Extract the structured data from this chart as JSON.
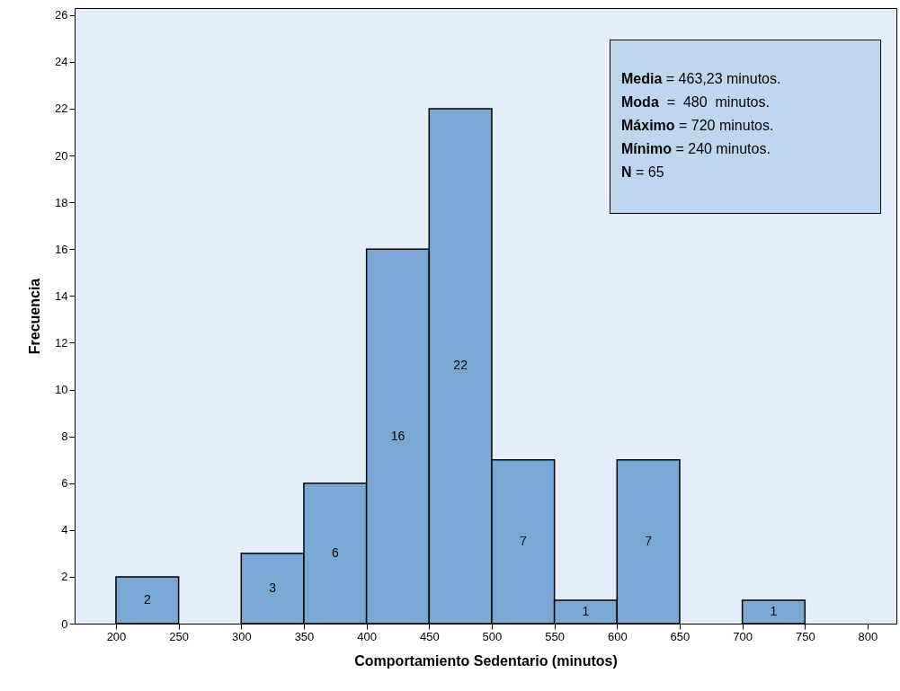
{
  "chart_data": {
    "type": "histogram",
    "xlabel": "Comportamiento Sedentario (minutos)",
    "ylabel": "Frecuencia",
    "bins": [
      200,
      250,
      300,
      350,
      400,
      450,
      500,
      550,
      600,
      650,
      700,
      750
    ],
    "values": [
      2,
      0,
      3,
      6,
      16,
      22,
      7,
      1,
      7,
      0,
      1
    ],
    "value_labels": [
      "2",
      null,
      "3",
      "6",
      "16",
      "22",
      "7",
      "1",
      "7",
      null,
      "1"
    ],
    "color": "#79a8d5",
    "xlim": [
      167,
      823
    ],
    "xticks": [
      200,
      250,
      300,
      350,
      400,
      450,
      500,
      550,
      600,
      650,
      700,
      750,
      800
    ],
    "ylim": [
      0,
      26.3
    ],
    "yticks": [
      0,
      2,
      4,
      6,
      8,
      10,
      12,
      14,
      16,
      18,
      20,
      22,
      24,
      26
    ],
    "grid": false,
    "annotations": [
      "Media = 463,23 minutos.",
      "Moda  =  480  minutos.",
      "Máximo = 720 minutos.",
      "Mínimo = 240 minutos.",
      "N = 65"
    ]
  }
}
